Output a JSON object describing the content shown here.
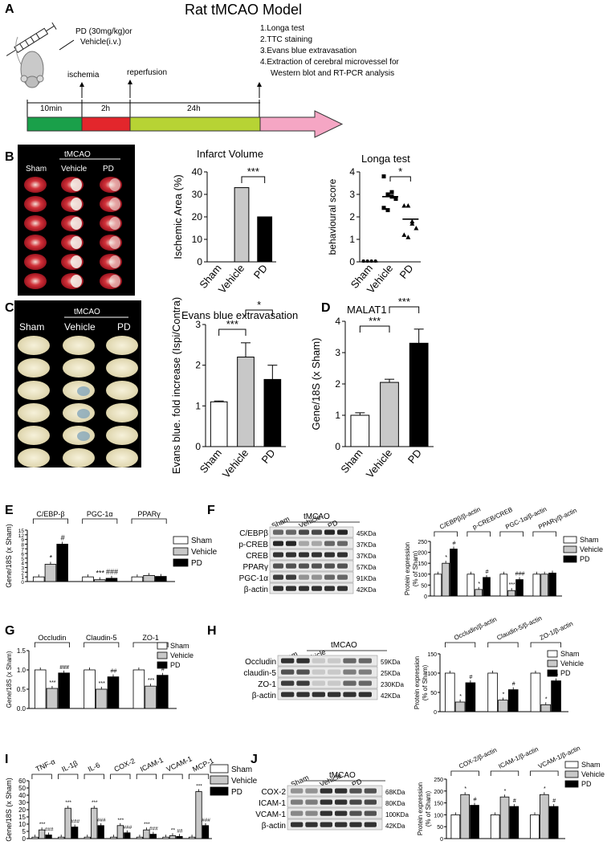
{
  "colors": {
    "sham": "#ffffff",
    "vehicle": "#c8c8c8",
    "pd": "#000000",
    "green": "#1aa04a",
    "red": "#e3262c",
    "lime": "#b7d334",
    "pink": "#f5a6c4"
  },
  "panelA": {
    "label": "A",
    "title": "Rat tMCAO Model",
    "treatment": "PD (30mg/kg)or",
    "vehicle": "Vehicle(i.v.)",
    "ischemia": "ischemia",
    "reperfusion": "reperfusion",
    "steps": [
      "1.Longa test",
      "2.TTC staining",
      "3.Evans blue extravasation",
      "4.Extraction of cerebral microvessel for",
      "Western blot and RT-PCR analysis"
    ],
    "timeline": [
      "10min",
      "2h",
      "24h"
    ]
  },
  "panelB": {
    "label": "B",
    "group": "tMCAO",
    "cols": [
      "Sham",
      "Vehicle",
      "PD"
    ]
  },
  "panelC": {
    "label": "C",
    "group": "tMCAO",
    "cols": [
      "Sham",
      "Vehicle",
      "PD"
    ]
  },
  "panelD": {
    "label": "D"
  },
  "panelE": {
    "label": "E",
    "legend": [
      "Sham",
      "Vehicle",
      "PD"
    ]
  },
  "panelF": {
    "label": "F",
    "group": "tMCAO",
    "lanes": [
      "Sham",
      "Vehicle",
      "PD"
    ],
    "blots": [
      {
        "name": "C/EBPβ",
        "kda": "45KDa"
      },
      {
        "name": "p-CREB",
        "kda": "37KDa"
      },
      {
        "name": "CREB",
        "kda": "37KDa"
      },
      {
        "name": "PPARγ",
        "kda": "57KDa"
      },
      {
        "name": "PGC-1α",
        "kda": "91KDa"
      },
      {
        "name": "β-actin",
        "kda": "42KDa"
      }
    ],
    "legend": [
      "Sham",
      "Vehicle",
      "PD"
    ]
  },
  "panelG": {
    "label": "G",
    "legend": [
      "Sham",
      "Vehicle",
      "PD"
    ]
  },
  "panelH": {
    "label": "H",
    "group": "tMCAO",
    "lanes": [
      "Sham",
      "Vehicle",
      "PD"
    ],
    "blots": [
      {
        "name": "Occludin",
        "kda": "59KDa"
      },
      {
        "name": "claudin-5",
        "kda": "25KDa"
      },
      {
        "name": "ZO-1",
        "kda": "230KDa"
      },
      {
        "name": "β-actin",
        "kda": "42KDa"
      }
    ],
    "legend": [
      "Sham",
      "Vehicle",
      "PD"
    ]
  },
  "panelI": {
    "label": "I",
    "legend": [
      "Sham",
      "Vehicle",
      "PD"
    ]
  },
  "panelJ": {
    "label": "J",
    "group": "tMCAO",
    "lanes": [
      "Sham",
      "Vehicle",
      "PD"
    ],
    "blots": [
      {
        "name": "COX-2",
        "kda": "68KDa"
      },
      {
        "name": "ICAM-1",
        "kda": "80KDa"
      },
      {
        "name": "VCAM-1",
        "kda": "100KDa"
      },
      {
        "name": "β-actin",
        "kda": "42KDa"
      }
    ],
    "legend": [
      "Sham",
      "Vehicle",
      "PD"
    ]
  },
  "chart_data": [
    {
      "id": "B1",
      "type": "bar",
      "title": "Infarct Volume",
      "ylabel": "Ischemic Area (%)",
      "categories": [
        "Sham",
        "Vehicle",
        "PD"
      ],
      "values": [
        0,
        33,
        20
      ],
      "ylim": [
        0,
        40
      ],
      "yticks": [
        0,
        10,
        20,
        30,
        40
      ],
      "sig": [
        {
          "from": 1,
          "to": 2,
          "text": "***"
        }
      ]
    },
    {
      "id": "B2",
      "type": "scatter",
      "title": "Longa test",
      "ylabel": "behavioural score",
      "categories": [
        "Sham",
        "Vehicle",
        "PD"
      ],
      "means": [
        0,
        2.9,
        1.9
      ],
      "points": [
        [
          0,
          0,
          0,
          0,
          0
        ],
        [
          3.8,
          3,
          2.9,
          2.8,
          2.4,
          2.3,
          3.1
        ],
        [
          2.5,
          2.5,
          1.8,
          1.5,
          1.2,
          1.1,
          1.7
        ]
      ],
      "ylim": [
        0,
        4
      ],
      "yticks": [
        0,
        1,
        2,
        3,
        4
      ],
      "sig": [
        {
          "from": 1,
          "to": 2,
          "text": "*"
        }
      ]
    },
    {
      "id": "C",
      "type": "bar",
      "title": "Evans blue extravasation",
      "ylabel": "Evans blue. fold increase (Ispi/Contra)",
      "categories": [
        "Sham",
        "Vehicle",
        "PD"
      ],
      "values": [
        1.1,
        2.2,
        1.65
      ],
      "errors": [
        0.02,
        0.35,
        0.35
      ],
      "ylim": [
        0,
        3
      ],
      "yticks": [
        0,
        1,
        2,
        3
      ],
      "sig": [
        {
          "from": 0,
          "to": 1,
          "text": "***"
        },
        {
          "from": 1,
          "to": 2,
          "text": "*"
        }
      ]
    },
    {
      "id": "D",
      "type": "bar",
      "title": "MALAT1",
      "ylabel": "Gene/18S (x Sham)",
      "categories": [
        "Sham",
        "Vehicle",
        "PD"
      ],
      "values": [
        1.0,
        2.05,
        3.3
      ],
      "errors": [
        0.08,
        0.1,
        0.45
      ],
      "ylim": [
        0,
        4
      ],
      "yticks": [
        0,
        1,
        2,
        3,
        4
      ],
      "sig": [
        {
          "from": 0,
          "to": 1,
          "text": "***"
        },
        {
          "from": 1,
          "to": 2,
          "text": "***"
        }
      ]
    },
    {
      "id": "E",
      "type": "bar",
      "ylabel": "Gene/18S (x Sham)",
      "groups": [
        "C/EBP-β",
        "PGC-1α",
        "PPARγ"
      ],
      "series": [
        {
          "name": "Sham",
          "values": [
            1,
            1,
            1
          ]
        },
        {
          "name": "Vehicle",
          "values": [
            3.7,
            0.4,
            1.3
          ]
        },
        {
          "name": "PD",
          "values": [
            8,
            0.7,
            1.1
          ]
        }
      ],
      "labels": [
        [
          "",
          "*",
          "#"
        ],
        [
          "",
          "***",
          "###"
        ],
        [
          "",
          "",
          ""
        ]
      ],
      "yticks": [
        "0",
        "1",
        "2",
        "3",
        "4",
        "5",
        "6",
        "7",
        "8",
        "9",
        "12",
        "15"
      ]
    },
    {
      "id": "F",
      "type": "bar",
      "ylabel": "Protein expression (% of Sham)",
      "groups": [
        "C/EBPβ/β-actin",
        "p-CREB/CREB",
        "PGC-1α/β-actin",
        "PPARγ/β-actin"
      ],
      "series": [
        {
          "name": "Sham",
          "values": [
            100,
            100,
            100,
            100
          ]
        },
        {
          "name": "Vehicle",
          "values": [
            150,
            30,
            25,
            100
          ]
        },
        {
          "name": "PD",
          "values": [
            215,
            85,
            75,
            105
          ]
        }
      ],
      "labels": [
        [
          "",
          "*",
          "#"
        ],
        [
          "",
          "*",
          "#"
        ],
        [
          "",
          "***",
          "###"
        ],
        [
          "",
          "",
          ""
        ]
      ],
      "ylim": [
        0,
        250
      ],
      "yticks": [
        0,
        50,
        100,
        150,
        200,
        250
      ]
    },
    {
      "id": "G",
      "type": "bar",
      "ylabel": "Gene/18S (x Sham)",
      "groups": [
        "Occludin",
        "Claudin-5",
        "ZO-1"
      ],
      "series": [
        {
          "name": "Sham",
          "values": [
            1,
            1,
            1
          ]
        },
        {
          "name": "Vehicle",
          "values": [
            0.52,
            0.5,
            0.58
          ]
        },
        {
          "name": "PD",
          "values": [
            0.92,
            0.82,
            0.86
          ]
        }
      ],
      "labels": [
        [
          "",
          "***",
          "###"
        ],
        [
          "",
          "***",
          "##"
        ],
        [
          "",
          "***",
          "#"
        ]
      ],
      "ylim": [
        0,
        1.5
      ],
      "yticks": [
        0.0,
        0.5,
        1.0,
        1.5
      ]
    },
    {
      "id": "H",
      "type": "bar",
      "ylabel": "Protein expression (% of Sham)",
      "groups": [
        "Occludin/β-actin",
        "Claudin-5/β-actin",
        "ZO-1/β-actin"
      ],
      "series": [
        {
          "name": "Sham",
          "values": [
            100,
            100,
            100
          ]
        },
        {
          "name": "Vehicle",
          "values": [
            25,
            30,
            18
          ]
        },
        {
          "name": "PD",
          "values": [
            75,
            57,
            80
          ]
        }
      ],
      "labels": [
        [
          "",
          "*",
          "#"
        ],
        [
          "",
          "*",
          "#"
        ],
        [
          "",
          "*",
          "#"
        ]
      ],
      "ylim": [
        0,
        150
      ],
      "yticks": [
        0,
        50,
        100,
        150
      ]
    },
    {
      "id": "I",
      "type": "bar",
      "ylabel": "Gene/18S (x Sham)",
      "groups": [
        "TNF-α",
        "IL-1β",
        "IL-6",
        "COX-2",
        "ICAM-1",
        "VCAM-1",
        "MCP-1"
      ],
      "series": [
        {
          "name": "Sham",
          "values": [
            1,
            1,
            1,
            1,
            1,
            1,
            1
          ]
        },
        {
          "name": "Vehicle",
          "values": [
            6,
            22,
            22,
            9,
            6,
            2,
            45
          ]
        },
        {
          "name": "PD",
          "values": [
            2.5,
            8,
            9,
            4,
            3,
            1.5,
            9
          ]
        }
      ],
      "labels": [
        [
          "",
          "***",
          "###"
        ],
        [
          "",
          "***",
          "###"
        ],
        [
          "",
          "***",
          "###"
        ],
        [
          "",
          "***",
          "###"
        ],
        [
          "",
          "***",
          "###"
        ],
        [
          "",
          "**",
          "##"
        ],
        [
          "",
          "***",
          "###"
        ]
      ],
      "ylim": [
        0,
        60
      ],
      "yticks": [
        0,
        5,
        10,
        15,
        20,
        30,
        40,
        50,
        60
      ]
    },
    {
      "id": "J",
      "type": "bar",
      "ylabel": "Protein expression (% of Sham)",
      "groups": [
        "COX-2/β-actin",
        "ICAM-1/β-actin",
        "VCAM-1/β-actin"
      ],
      "series": [
        {
          "name": "Sham",
          "values": [
            100,
            100,
            100
          ]
        },
        {
          "name": "Vehicle",
          "values": [
            185,
            175,
            185
          ]
        },
        {
          "name": "PD",
          "values": [
            140,
            135,
            135
          ]
        }
      ],
      "labels": [
        [
          "",
          "*",
          "#"
        ],
        [
          "",
          "*",
          "#"
        ],
        [
          "",
          "*",
          "#"
        ]
      ],
      "ylim": [
        0,
        250
      ],
      "yticks": [
        0,
        50,
        100,
        150,
        200,
        250
      ]
    }
  ]
}
